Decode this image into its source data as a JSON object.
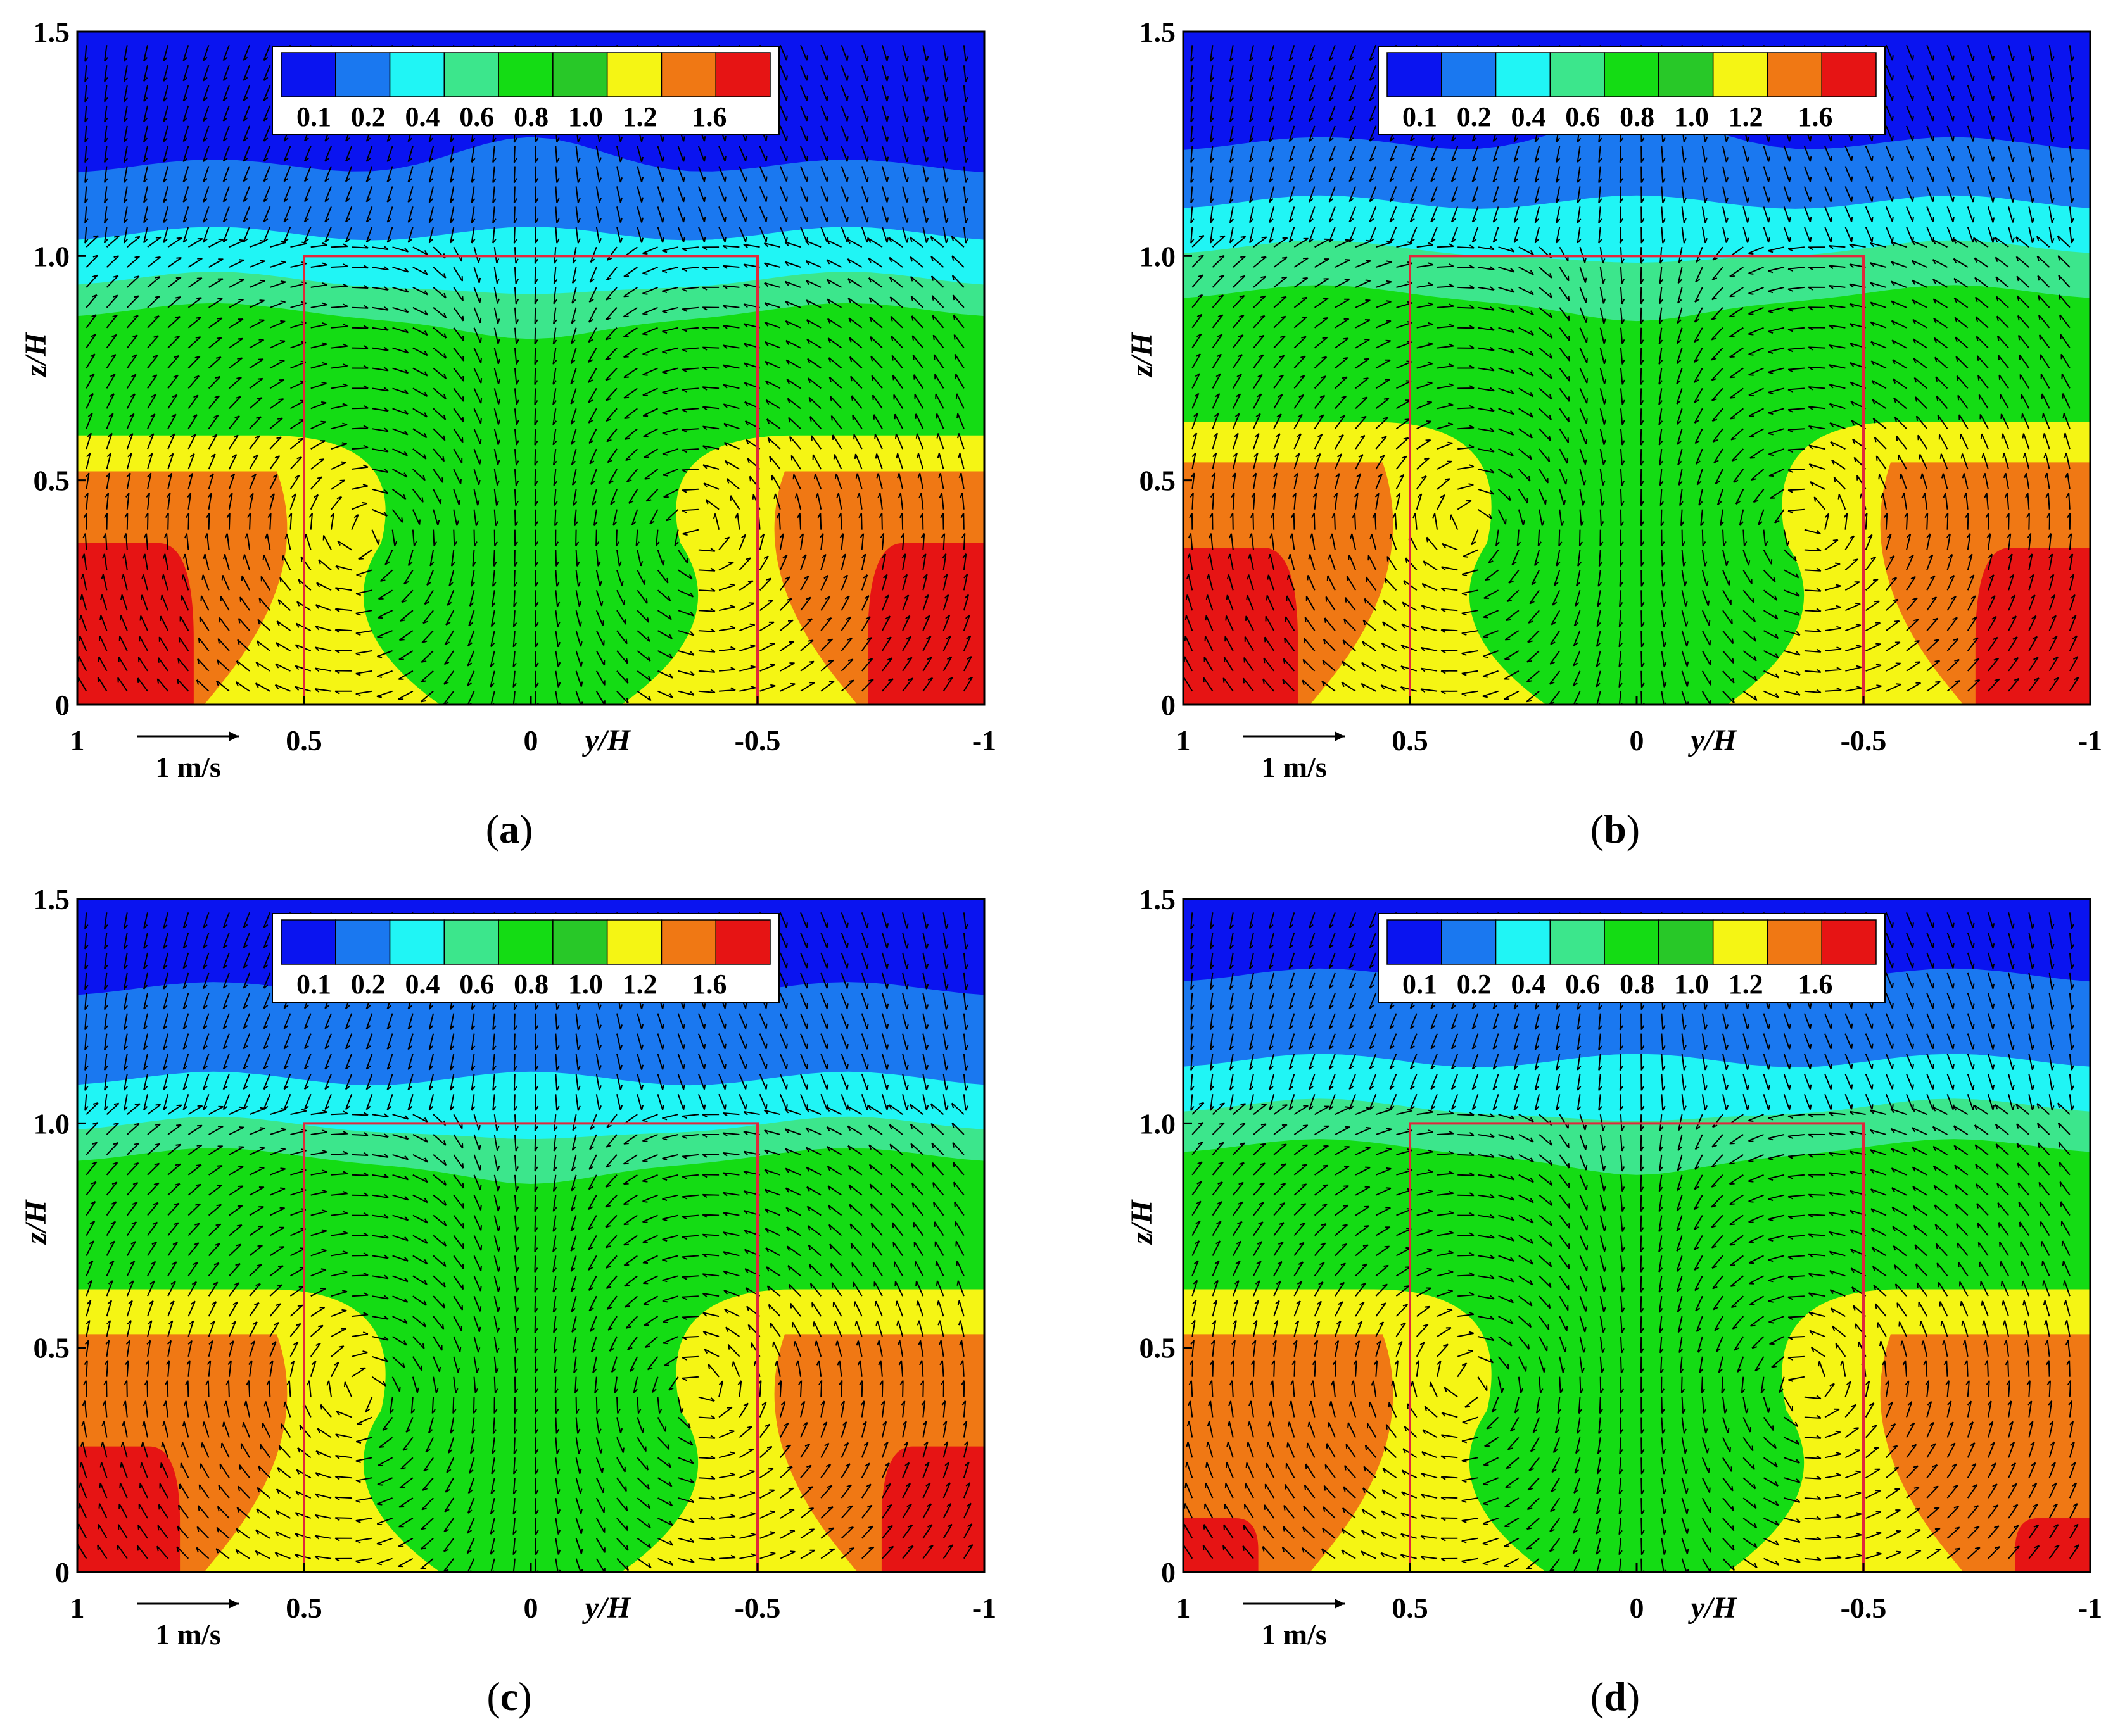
{
  "figure": {
    "panels": [
      {
        "label": "(a)",
        "caption_letter": "a",
        "chart_data": {
          "type": "heatmap",
          "subtype": "filled-contour with velocity vectors",
          "xlabel": "y/H",
          "ylabel": "z/H",
          "xlim": [
            1,
            -1
          ],
          "ylim": [
            0,
            1.5
          ],
          "x_ticks": [
            "1",
            "0.5",
            "0",
            "-0.5",
            "-1"
          ],
          "x_tick_values": [
            1,
            0.5,
            0,
            -0.5,
            -1
          ],
          "y_ticks": [
            "0",
            "0.5",
            "1.0",
            "1.5"
          ],
          "y_tick_values": [
            0,
            0.5,
            1.0,
            1.5
          ],
          "colorbar_levels": [
            "0.1",
            "0.2",
            "0.4",
            "0.6",
            "0.8",
            "1.0",
            "1.2",
            "1.6"
          ],
          "colorbar_colors": [
            "#0a14f0",
            "#1a78f0",
            "#20f5f5",
            "#3ce68c",
            "#14dc14",
            "#28c828",
            "#f5f514",
            "#f07814",
            "#e61414"
          ],
          "vector_reference": "1 m/s",
          "building_outline": {
            "y": [
              0.5,
              -0.5
            ],
            "z": [
              0,
              1.0
            ]
          },
          "contour_band_heights_z": {
            "top_blue": 1.2,
            "cyan": 1.05,
            "teal": 0.9,
            "green": 0.78,
            "yellow": 0.6,
            "orange": 0.52,
            "red": 0.36
          },
          "vortex_centers_y": [
            0.37,
            -0.37
          ],
          "vortex_center_z": 0.38
        }
      },
      {
        "label": "(b)",
        "caption_letter": "b",
        "chart_data": {
          "type": "heatmap",
          "subtype": "filled-contour with velocity vectors",
          "xlabel": "y/H",
          "ylabel": "z/H",
          "xlim": [
            1,
            -1
          ],
          "ylim": [
            0,
            1.5
          ],
          "x_ticks": [
            "1",
            "0.5",
            "0",
            "-0.5",
            "-1"
          ],
          "x_tick_values": [
            1,
            0.5,
            0,
            -0.5,
            -1
          ],
          "y_ticks": [
            "0",
            "0.5",
            "1.0",
            "1.5"
          ],
          "y_tick_values": [
            0,
            0.5,
            1.0,
            1.5
          ],
          "colorbar_levels": [
            "0.1",
            "0.2",
            "0.4",
            "0.6",
            "0.8",
            "1.0",
            "1.2",
            "1.6"
          ],
          "colorbar_colors": [
            "#0a14f0",
            "#1a78f0",
            "#20f5f5",
            "#3ce68c",
            "#14dc14",
            "#28c828",
            "#f5f514",
            "#f07814",
            "#e61414"
          ],
          "vector_reference": "1 m/s",
          "building_outline": {
            "y": [
              0.5,
              -0.5
            ],
            "z": [
              0,
              1.0
            ]
          },
          "contour_band_heights_z": {
            "top_blue": 1.25,
            "cyan": 1.12,
            "teal": 0.94,
            "green": 0.82,
            "yellow": 0.63,
            "orange": 0.54,
            "red": 0.35
          },
          "vortex_centers_y": [
            0.37,
            -0.37
          ],
          "vortex_center_z": 0.4
        }
      },
      {
        "label": "(c)",
        "caption_letter": "c",
        "chart_data": {
          "type": "heatmap",
          "subtype": "filled-contour with velocity vectors",
          "xlabel": "y/H",
          "ylabel": "z/H",
          "xlim": [
            1,
            -1
          ],
          "ylim": [
            0,
            1.5
          ],
          "x_ticks": [
            "1",
            "0.5",
            "0",
            "-0.5",
            "-1"
          ],
          "x_tick_values": [
            1,
            0.5,
            0,
            -0.5,
            -1
          ],
          "y_ticks": [
            "0",
            "0.5",
            "1.0",
            "1.5"
          ],
          "y_tick_values": [
            0,
            0.5,
            1.0,
            1.5
          ],
          "colorbar_levels": [
            "0.1",
            "0.2",
            "0.4",
            "0.6",
            "0.8",
            "1.0",
            "1.2",
            "1.6"
          ],
          "colorbar_colors": [
            "#0a14f0",
            "#1a78f0",
            "#20f5f5",
            "#3ce68c",
            "#14dc14",
            "#28c828",
            "#f5f514",
            "#f07814",
            "#e61414"
          ],
          "vector_reference": "1 m/s",
          "building_outline": {
            "y": [
              0.5,
              -0.5
            ],
            "z": [
              0,
              1.0
            ]
          },
          "contour_band_heights_z": {
            "top_blue": 1.3,
            "cyan": 1.1,
            "teal": 0.95,
            "green": 0.84,
            "yellow": 0.63,
            "orange": 0.53,
            "red": 0.28
          },
          "vortex_centers_y": [
            0.37,
            -0.37
          ],
          "vortex_center_z": 0.4
        }
      },
      {
        "label": "(d)",
        "caption_letter": "d",
        "chart_data": {
          "type": "heatmap",
          "subtype": "filled-contour with velocity vectors",
          "xlabel": "y/H",
          "ylabel": "z/H",
          "xlim": [
            1,
            -1
          ],
          "ylim": [
            0,
            1.5
          ],
          "x_ticks": [
            "1",
            "0.5",
            "0",
            "-0.5",
            "-1"
          ],
          "x_tick_values": [
            1,
            0.5,
            0,
            -0.5,
            -1
          ],
          "y_ticks": [
            "0",
            "0.5",
            "1.0",
            "1.5"
          ],
          "y_tick_values": [
            0,
            0.5,
            1.0,
            1.5
          ],
          "colorbar_levels": [
            "0.1",
            "0.2",
            "0.4",
            "0.6",
            "0.8",
            "1.0",
            "1.2",
            "1.6"
          ],
          "colorbar_colors": [
            "#0a14f0",
            "#1a78f0",
            "#20f5f5",
            "#3ce68c",
            "#14dc14",
            "#28c828",
            "#f5f514",
            "#f07814",
            "#e61414"
          ],
          "vector_reference": "1 m/s",
          "building_outline": {
            "y": [
              0.5,
              -0.5
            ],
            "z": [
              0,
              1.0
            ]
          },
          "contour_band_heights_z": {
            "top_blue": 1.33,
            "cyan": 1.14,
            "teal": 0.97,
            "green": 0.85,
            "yellow": 0.63,
            "orange": 0.53,
            "red": 0.12
          },
          "vortex_centers_y": [
            0.37,
            -0.37
          ],
          "vortex_center_z": 0.42
        }
      }
    ]
  }
}
